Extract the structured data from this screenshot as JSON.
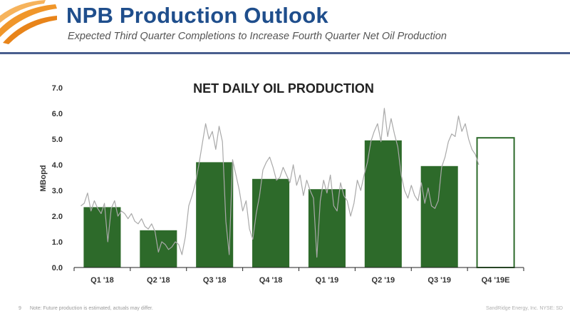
{
  "header": {
    "title": "NPB Production Outlook",
    "subtitle": "Expected Third Quarter Completions to Increase Fourth Quarter Net Oil Production"
  },
  "colors": {
    "title": "#1f4e8c",
    "rule": "#4a5f8e",
    "bar_fill": "#2d6a2a",
    "estimate_outline": "#2d6a2a",
    "daily_line": "#a9a9a9",
    "logo_orange": "#f0962a"
  },
  "logo": {
    "name": "orange-swoosh-logo"
  },
  "chart_data": {
    "type": "bar",
    "title": "NET DAILY OIL PRODUCTION",
    "ylabel": "MBopd",
    "xlabel": "",
    "ylim": [
      0,
      7
    ],
    "yticks": [
      "0.0",
      "1.0",
      "2.0",
      "3.0",
      "4.0",
      "5.0",
      "6.0",
      "7.0"
    ],
    "grid": false,
    "categories": [
      "Q1 '18",
      "Q2 '18",
      "Q3 '18",
      "Q4 '18",
      "Q1 '19",
      "Q2 '19",
      "Q3 '19",
      "Q4 '19E"
    ],
    "values": [
      2.35,
      1.45,
      4.1,
      3.45,
      3.05,
      4.95,
      3.95,
      5.05
    ],
    "estimate": [
      false,
      false,
      false,
      false,
      false,
      false,
      false,
      true
    ],
    "daily_series": {
      "type": "line",
      "x_quarter_index": [
        0.0,
        0.06,
        0.12,
        0.18,
        0.24,
        0.3,
        0.36,
        0.42,
        0.48,
        0.54,
        0.6,
        0.66,
        0.72,
        0.78,
        0.84,
        0.9,
        0.96,
        1.02,
        1.08,
        1.14,
        1.2,
        1.26,
        1.32,
        1.38,
        1.44,
        1.5,
        1.56,
        1.62,
        1.68,
        1.74,
        1.8,
        1.86,
        1.92,
        1.98,
        2.04,
        2.1,
        2.16,
        2.22,
        2.28,
        2.34,
        2.4,
        2.46,
        2.52,
        2.58,
        2.64,
        2.7,
        2.76,
        2.82,
        2.88,
        2.94,
        3.0,
        3.06,
        3.12,
        3.18,
        3.24,
        3.3,
        3.36,
        3.42,
        3.48,
        3.54,
        3.6,
        3.66,
        3.72,
        3.78,
        3.84,
        3.9,
        3.96,
        4.02,
        4.08,
        4.14,
        4.2,
        4.26,
        4.32,
        4.38,
        4.44,
        4.5,
        4.56,
        4.62,
        4.68,
        4.74,
        4.8,
        4.86,
        4.92,
        4.98,
        5.04,
        5.1,
        5.16,
        5.22,
        5.28,
        5.34,
        5.4,
        5.46,
        5.52,
        5.58,
        5.64,
        5.7,
        5.76,
        5.82,
        5.88,
        5.94,
        6.0,
        6.06,
        6.12,
        6.18,
        6.24,
        6.3,
        6.36,
        6.42,
        6.48,
        6.54,
        6.6,
        6.66,
        6.72,
        6.78,
        6.84,
        6.9,
        6.96,
        7.02,
        7.08
      ],
      "values": [
        2.4,
        2.5,
        2.9,
        2.2,
        2.6,
        2.3,
        2.1,
        2.5,
        1.0,
        2.3,
        2.6,
        2.0,
        2.2,
        2.1,
        1.9,
        2.1,
        1.8,
        1.7,
        1.9,
        1.6,
        1.5,
        1.7,
        1.4,
        0.6,
        1.0,
        0.9,
        0.7,
        0.8,
        1.0,
        0.9,
        0.5,
        1.2,
        2.4,
        2.8,
        3.3,
        4.0,
        4.8,
        5.6,
        5.0,
        5.3,
        4.6,
        5.5,
        4.9,
        1.8,
        0.5,
        4.2,
        3.6,
        3.0,
        2.2,
        2.6,
        1.5,
        1.1,
        2.1,
        2.8,
        3.8,
        4.1,
        4.3,
        3.9,
        3.4,
        3.5,
        3.9,
        3.6,
        3.3,
        4.0,
        3.2,
        3.6,
        2.8,
        3.4,
        3.0,
        2.7,
        0.4,
        2.6,
        3.4,
        2.9,
        3.6,
        2.4,
        2.2,
        3.3,
        2.8,
        2.6,
        2.0,
        2.5,
        3.4,
        3.0,
        3.6,
        4.1,
        4.9,
        5.3,
        5.6,
        4.9,
        6.2,
        5.1,
        5.8,
        5.2,
        4.7,
        3.6,
        3.0,
        2.7,
        3.2,
        2.8,
        2.6,
        3.3,
        2.5,
        3.1,
        2.4,
        2.3,
        2.6,
        3.9,
        4.3,
        4.9,
        5.2,
        5.1,
        5.9,
        5.3,
        5.6,
        5.0,
        4.6,
        4.4,
        4.0
      ]
    }
  },
  "footer": {
    "page_number": "9",
    "note": "Note: Future production is estimated, actuals may differ.",
    "company": "SandRidge Energy, Inc. NYSE: SD"
  }
}
